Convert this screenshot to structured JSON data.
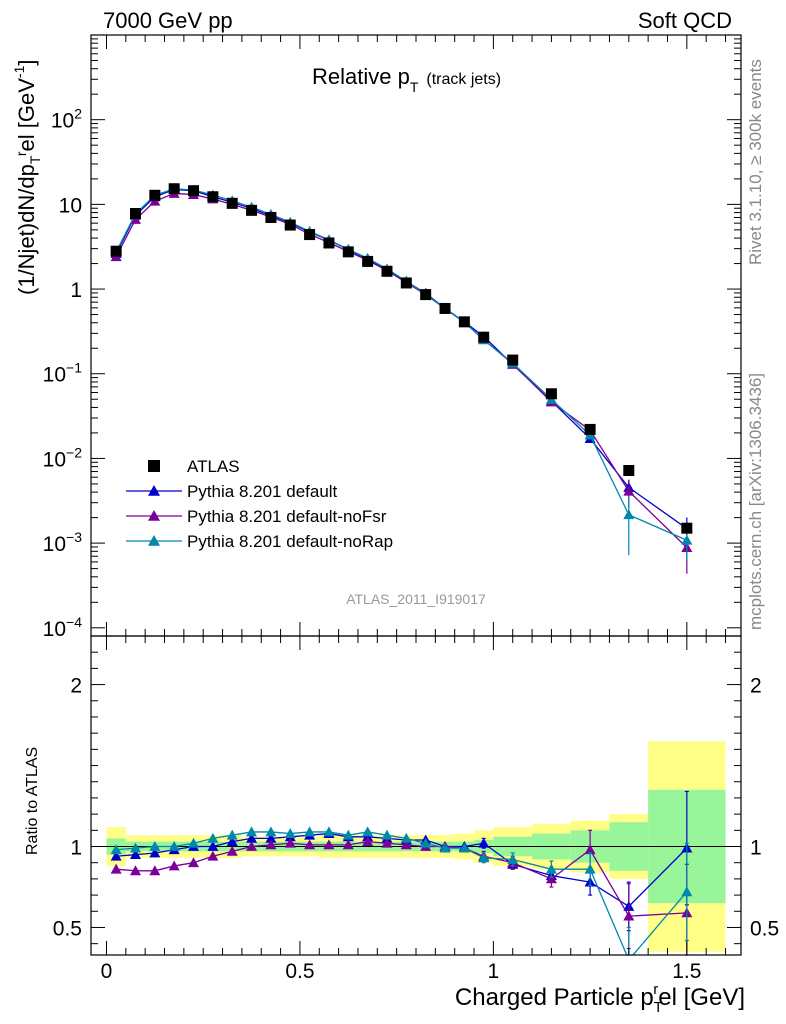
{
  "header": {
    "left": "7000 GeV pp",
    "right": "Soft QCD"
  },
  "plot_title": {
    "main": "Relative p",
    "sub": "T",
    "suffix": "(track jets)"
  },
  "y_label": "(1/Njet)dN/dp",
  "y_label_sub": "T",
  "y_label_sup": "r",
  "y_label_tail": "el [GeV",
  "y_label_unit_sup": "-1",
  "y_label_close": "]",
  "ratio_label": "Ratio to ATLAS",
  "x_label": "Charged Particle p",
  "x_label_sub": "T",
  "x_label_sup": "r",
  "x_label_tail": "el [GeV]",
  "side_top": "Rivet 3.1.10, ≥ 300k events",
  "side_bottom": "mcplots.cern.ch [arXiv:1306.3436]",
  "analysis_id": "ATLAS_2011_I919017",
  "main_ticks": [
    {
      "v": 0.0001,
      "base": "10",
      "exp": "−4"
    },
    {
      "v": 0.001,
      "base": "10",
      "exp": "−3"
    },
    {
      "v": 0.01,
      "base": "10",
      "exp": "−2"
    },
    {
      "v": 0.1,
      "base": "10",
      "exp": "−1"
    },
    {
      "v": 1,
      "base": "1",
      "exp": ""
    },
    {
      "v": 10,
      "base": "10",
      "exp": ""
    },
    {
      "v": 100,
      "base": "10",
      "exp": "2"
    }
  ],
  "ratio_ticks": [
    {
      "v": 0.5,
      "label": "0.5"
    },
    {
      "v": 1,
      "label": "1"
    },
    {
      "v": 2,
      "label": "2"
    }
  ],
  "x_ticks": [
    {
      "v": 0,
      "label": "0"
    },
    {
      "v": 0.5,
      "label": "0.5"
    },
    {
      "v": 1,
      "label": "1"
    },
    {
      "v": 1.5,
      "label": "1.5"
    }
  ],
  "colors": {
    "atlas": "#000000",
    "default": "#0000cc",
    "noFsr": "#7b0099",
    "noRap": "#0088aa",
    "band_inner": "#99f599",
    "band_outer": "#ffff88"
  },
  "chart_data": {
    "type": "scatter",
    "x": [
      0.025,
      0.075,
      0.125,
      0.175,
      0.225,
      0.275,
      0.325,
      0.375,
      0.425,
      0.475,
      0.525,
      0.575,
      0.625,
      0.675,
      0.725,
      0.775,
      0.825,
      0.875,
      0.925,
      0.975,
      1.05,
      1.15,
      1.25,
      1.35,
      1.5
    ],
    "x_edges": [
      0,
      0.05,
      0.1,
      0.15,
      0.2,
      0.25,
      0.3,
      0.35,
      0.4,
      0.45,
      0.5,
      0.55,
      0.6,
      0.65,
      0.7,
      0.75,
      0.8,
      0.85,
      0.9,
      0.95,
      1.0,
      1.1,
      1.2,
      1.3,
      1.4,
      1.6
    ],
    "xlim": [
      -0.04,
      1.64
    ],
    "ylim_main": [
      8e-05,
      1000
    ],
    "ylim_ratio": [
      0.33,
      2.3
    ],
    "yscale_main": "log",
    "legend_position": "bottom-left",
    "series": [
      {
        "name": "ATLAS",
        "key": "atlas",
        "marker": "square",
        "values": [
          2.8,
          7.8,
          12.8,
          15.3,
          14.5,
          12.3,
          10.3,
          8.5,
          7.0,
          5.7,
          4.4,
          3.5,
          2.75,
          2.12,
          1.62,
          1.18,
          0.86,
          0.59,
          0.41,
          0.27,
          0.145,
          0.058,
          0.022,
          0.0072,
          0.0015
        ],
        "band_inner": [
          0.05,
          0.03,
          0.03,
          0.03,
          0.03,
          0.03,
          0.03,
          0.03,
          0.03,
          0.03,
          0.03,
          0.03,
          0.03,
          0.03,
          0.03,
          0.03,
          0.03,
          0.03,
          0.03,
          0.04,
          0.06,
          0.08,
          0.1,
          0.15,
          0.35
        ],
        "band_outer": [
          0.12,
          0.07,
          0.07,
          0.07,
          0.07,
          0.07,
          0.07,
          0.06,
          0.06,
          0.06,
          0.06,
          0.07,
          0.07,
          0.07,
          0.07,
          0.07,
          0.07,
          0.07,
          0.08,
          0.1,
          0.12,
          0.14,
          0.16,
          0.2,
          0.65
        ]
      },
      {
        "name": "Pythia 8.201 default",
        "key": "default",
        "marker": "triangle",
        "ratio": [
          0.94,
          0.95,
          0.96,
          0.98,
          1.0,
          1.0,
          1.03,
          1.05,
          1.05,
          1.06,
          1.07,
          1.08,
          1.06,
          1.06,
          1.05,
          1.04,
          1.04,
          1.0,
          1.0,
          1.02,
          0.89,
          0.82,
          0.78,
          0.63,
          0.99
        ],
        "ratio_err": [
          0.01,
          0.01,
          0.01,
          0.01,
          0.01,
          0.01,
          0.01,
          0.01,
          0.01,
          0.01,
          0.01,
          0.01,
          0.01,
          0.01,
          0.01,
          0.01,
          0.01,
          0.02,
          0.02,
          0.03,
          0.03,
          0.04,
          0.08,
          0.15,
          0.35
        ]
      },
      {
        "name": "Pythia 8.201 default-noFsr",
        "key": "noFsr",
        "marker": "triangle",
        "ratio": [
          0.86,
          0.85,
          0.85,
          0.88,
          0.9,
          0.94,
          0.97,
          1.0,
          1.01,
          1.02,
          1.01,
          1.01,
          1.01,
          1.03,
          1.02,
          1.01,
          1.0,
          1.0,
          0.99,
          0.94,
          0.9,
          0.8,
          0.98,
          0.57,
          0.59
        ],
        "ratio_err": [
          0.01,
          0.01,
          0.01,
          0.01,
          0.01,
          0.01,
          0.01,
          0.01,
          0.01,
          0.01,
          0.01,
          0.01,
          0.01,
          0.01,
          0.01,
          0.01,
          0.01,
          0.02,
          0.02,
          0.03,
          0.04,
          0.05,
          0.12,
          0.2,
          0.3
        ]
      },
      {
        "name": "Pythia 8.201 default-noRap",
        "key": "noRap",
        "marker": "triangle",
        "ratio": [
          0.98,
          0.99,
          1.0,
          1.0,
          1.02,
          1.05,
          1.07,
          1.09,
          1.09,
          1.08,
          1.09,
          1.09,
          1.07,
          1.09,
          1.07,
          1.05,
          1.02,
          0.99,
          0.99,
          0.93,
          0.92,
          0.86,
          0.86,
          0.3,
          0.72
        ],
        "ratio_err": [
          0.01,
          0.01,
          0.01,
          0.01,
          0.01,
          0.01,
          0.01,
          0.01,
          0.01,
          0.01,
          0.01,
          0.01,
          0.01,
          0.01,
          0.01,
          0.01,
          0.01,
          0.02,
          0.02,
          0.03,
          0.04,
          0.05,
          0.1,
          0.2,
          0.3
        ]
      }
    ]
  }
}
